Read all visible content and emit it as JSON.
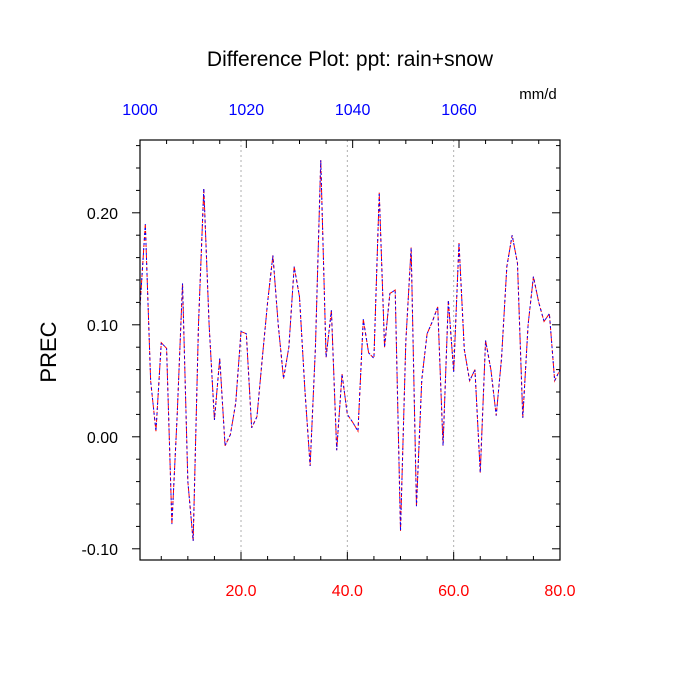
{
  "chart_data": {
    "type": "line",
    "title": "Difference Plot: ppt: rain+snow",
    "units_label": "mm/d",
    "ylabel": "PREC",
    "xlim": [
      1,
      80
    ],
    "ylim": [
      -0.11,
      0.265
    ],
    "grid": "vertical-dotted",
    "bottom_axis": {
      "ticks": [
        20,
        40,
        60,
        80
      ],
      "labels": [
        "20.0",
        "40.0",
        "60.0",
        "80.0"
      ],
      "color": "#ff0000"
    },
    "top_axis": {
      "ticks": [
        1000,
        1020,
        1040,
        1060
      ],
      "labels": [
        "1000",
        "1020",
        "1040",
        "1060"
      ],
      "range": [
        1000,
        1079
      ],
      "color": "#0000ff"
    },
    "left_axis": {
      "ticks": [
        -0.1,
        0.0,
        0.1,
        0.2
      ],
      "labels": [
        "-0.10",
        "0.00",
        "0.10",
        "0.20"
      ]
    },
    "series": [
      {
        "color": "#ff0000",
        "x": [
          1,
          2,
          3,
          4,
          5,
          6,
          7,
          8,
          9,
          10,
          11,
          12,
          13,
          14,
          15,
          16,
          17,
          18,
          19,
          20,
          21,
          22,
          23,
          24,
          25,
          26,
          27,
          28,
          29,
          30,
          31,
          32,
          33,
          34,
          35,
          36,
          37,
          38,
          39,
          40,
          41,
          42,
          43,
          44,
          45,
          46,
          47,
          48,
          49,
          50,
          51,
          52,
          53,
          54,
          55,
          56,
          57,
          58,
          59,
          60,
          61,
          62,
          63,
          64,
          65,
          66,
          67,
          68,
          69,
          70,
          71,
          72,
          73,
          74,
          75,
          76,
          77,
          78,
          79,
          80
        ],
        "y": [
          0.116,
          0.19,
          0.05,
          0.005,
          0.084,
          0.079,
          -0.078,
          0.02,
          0.137,
          -0.04,
          -0.093,
          0.1,
          0.222,
          0.1,
          0.015,
          0.07,
          -0.008,
          0.002,
          0.03,
          0.094,
          0.092,
          0.008,
          0.018,
          0.07,
          0.12,
          0.162,
          0.1,
          0.052,
          0.08,
          0.152,
          0.125,
          0.043,
          -0.026,
          0.08,
          0.247,
          0.071,
          0.113,
          -0.012,
          0.056,
          0.02,
          0.013,
          0.005,
          0.105,
          0.075,
          0.07,
          0.218,
          0.08,
          0.128,
          0.131,
          -0.084,
          0.085,
          0.169,
          -0.062,
          0.051,
          0.092,
          0.103,
          0.116,
          -0.008,
          0.122,
          0.058,
          0.173,
          0.078,
          0.05,
          0.06,
          -0.032,
          0.086,
          0.06,
          0.019,
          0.07,
          0.152,
          0.18,
          0.155,
          0.017,
          0.1,
          0.143,
          0.12,
          0.103,
          0.11,
          0.05,
          0.06
        ]
      },
      {
        "color": "#0000ff",
        "x": [
          1,
          2,
          3,
          4,
          5,
          6,
          7,
          8,
          9,
          10,
          11,
          12,
          13,
          14,
          15,
          16,
          17,
          18,
          19,
          20,
          21,
          22,
          23,
          24,
          25,
          26,
          27,
          28,
          29,
          30,
          31,
          32,
          33,
          34,
          35,
          36,
          37,
          38,
          39,
          40,
          41,
          42,
          43,
          44,
          45,
          46,
          47,
          48,
          49,
          50,
          51,
          52,
          53,
          54,
          55,
          56,
          57,
          58,
          59,
          60,
          61,
          62,
          63,
          64,
          65,
          66,
          67,
          68,
          69,
          70,
          71,
          72,
          73,
          74,
          75,
          76,
          77,
          78,
          79,
          80
        ],
        "y": [
          0.116,
          0.19,
          0.05,
          0.005,
          0.084,
          0.079,
          -0.078,
          0.02,
          0.137,
          -0.04,
          -0.093,
          0.1,
          0.222,
          0.1,
          0.015,
          0.07,
          -0.008,
          0.002,
          0.03,
          0.094,
          0.092,
          0.008,
          0.018,
          0.07,
          0.12,
          0.162,
          0.1,
          0.052,
          0.08,
          0.152,
          0.125,
          0.043,
          -0.026,
          0.08,
          0.247,
          0.071,
          0.113,
          -0.012,
          0.056,
          0.02,
          0.013,
          0.005,
          0.105,
          0.075,
          0.07,
          0.218,
          0.08,
          0.128,
          0.131,
          -0.084,
          0.085,
          0.169,
          -0.062,
          0.051,
          0.092,
          0.103,
          0.116,
          -0.008,
          0.122,
          0.058,
          0.173,
          0.078,
          0.05,
          0.06,
          -0.032,
          0.086,
          0.06,
          0.019,
          0.07,
          0.152,
          0.18,
          0.155,
          0.017,
          0.1,
          0.143,
          0.12,
          0.103,
          0.11,
          0.05,
          0.06
        ]
      }
    ]
  }
}
